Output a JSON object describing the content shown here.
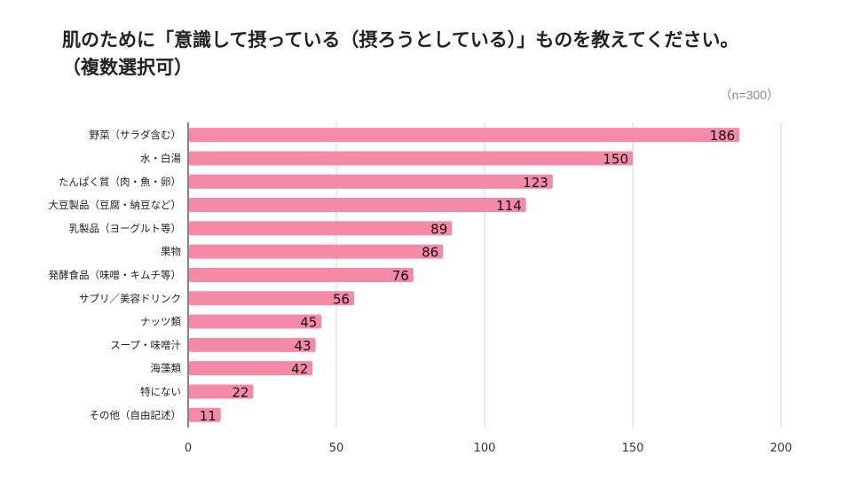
{
  "chart_data": {
    "type": "bar",
    "orientation": "horizontal",
    "title": "肌のために「意識して摂っている（摂ろうとしている）」ものを教えてください。\n（複数選択可）",
    "sample_note": "（n=300）",
    "categories": [
      "野菜（サラダ含む）",
      "水・白湯",
      "たんぱく質（肉・魚・卵）",
      "大豆製品（豆腐・納豆など）",
      "乳製品（ヨーグルト等）",
      "果物",
      "発酵食品（味噌・キムチ等）",
      "サプリ／美容ドリンク",
      "ナッツ類",
      "スープ・味噌汁",
      "海藻類",
      "特にない",
      "その他（自由記述）"
    ],
    "values": [
      186,
      150,
      123,
      114,
      89,
      86,
      76,
      56,
      45,
      43,
      42,
      22,
      11
    ],
    "xlim": [
      0,
      200
    ],
    "xticks": [
      0,
      50,
      100,
      150,
      200
    ],
    "xlabel": "",
    "ylabel": "",
    "grid": true,
    "bar_color": "#f48aa7",
    "grid_color": "#d6d6d6",
    "axis_color": "#333333"
  }
}
